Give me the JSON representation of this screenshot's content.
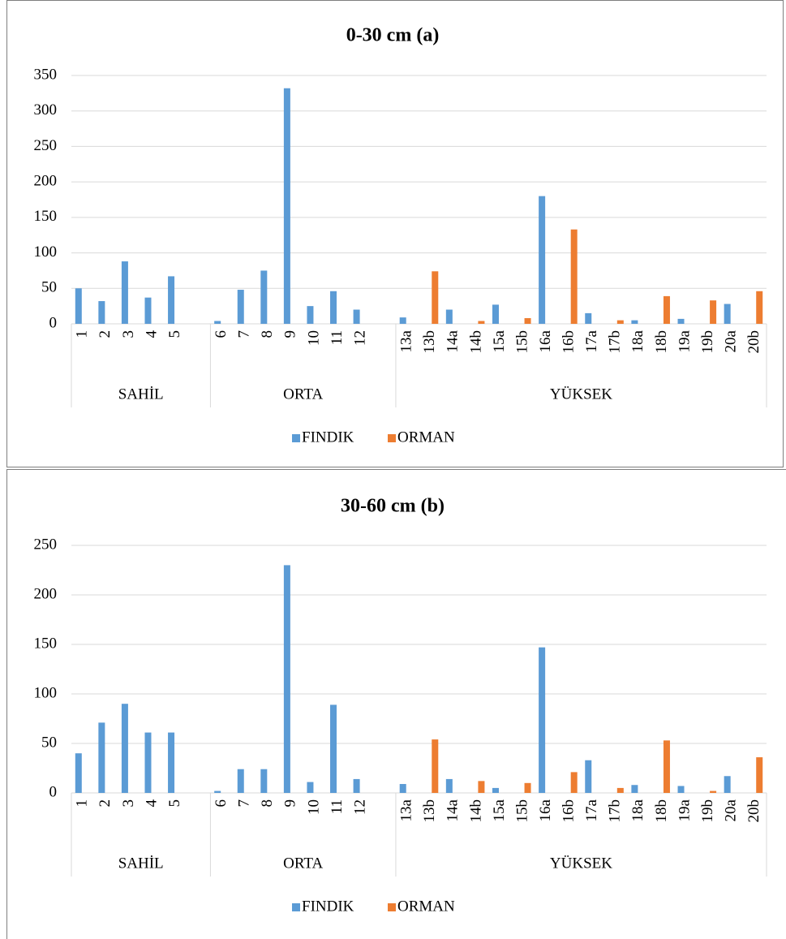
{
  "chart_data": [
    {
      "type": "bar",
      "title": "0-30 cm  (a)",
      "groups": [
        {
          "name": "SAHİL",
          "categories": [
            "1",
            "2",
            "3",
            "4",
            "5",
            null
          ]
        },
        {
          "name": "ORTA",
          "categories": [
            "6",
            "7",
            "8",
            "9",
            "10",
            "11",
            "12",
            null
          ]
        },
        {
          "name": "YÜKSEK",
          "categories": [
            "13a",
            "13b",
            "14a",
            "14b",
            "15a",
            "15b",
            "16a",
            "16b",
            "17a",
            "17b",
            "18a",
            "18b",
            "19a",
            "19b",
            "20a",
            "20b"
          ]
        }
      ],
      "series": [
        {
          "name": "FINDIK",
          "color": "#5b9bd5",
          "values": [
            50,
            32,
            88,
            37,
            67,
            null,
            4,
            48,
            75,
            332,
            25,
            46,
            20,
            null,
            9,
            null,
            20,
            null,
            27,
            null,
            180,
            null,
            15,
            null,
            5,
            null,
            7,
            null,
            28,
            null
          ]
        },
        {
          "name": "ORMAN",
          "color": "#ed7d31",
          "values": [
            null,
            null,
            null,
            null,
            null,
            null,
            null,
            null,
            null,
            null,
            null,
            null,
            null,
            null,
            null,
            74,
            null,
            4,
            null,
            8,
            null,
            133,
            null,
            5,
            null,
            39,
            null,
            33,
            null,
            46
          ]
        }
      ],
      "ylim": [
        0,
        350
      ],
      "yticks": [
        0,
        50,
        100,
        150,
        200,
        250,
        300,
        350
      ],
      "grid": true,
      "legend": "bottom"
    },
    {
      "type": "bar",
      "title": "30-60 cm  (b)",
      "groups": [
        {
          "name": "SAHİL",
          "categories": [
            "1",
            "2",
            "3",
            "4",
            "5",
            null
          ]
        },
        {
          "name": "ORTA",
          "categories": [
            "6",
            "7",
            "8",
            "9",
            "10",
            "11",
            "12",
            null
          ]
        },
        {
          "name": "YÜKSEK",
          "categories": [
            "13a",
            "13b",
            "14a",
            "14b",
            "15a",
            "15b",
            "16a",
            "16b",
            "17a",
            "17b",
            "18a",
            "18b",
            "19a",
            "19b",
            "20a",
            "20b"
          ]
        }
      ],
      "series": [
        {
          "name": "FINDIK",
          "color": "#5b9bd5",
          "values": [
            40,
            71,
            90,
            61,
            61,
            null,
            2,
            24,
            24,
            230,
            11,
            89,
            14,
            null,
            9,
            null,
            14,
            null,
            5,
            null,
            147,
            null,
            33,
            null,
            8,
            null,
            7,
            null,
            17,
            null
          ]
        },
        {
          "name": "ORMAN",
          "color": "#ed7d31",
          "values": [
            null,
            null,
            null,
            null,
            null,
            null,
            null,
            null,
            null,
            null,
            null,
            null,
            null,
            null,
            null,
            54,
            null,
            12,
            null,
            10,
            null,
            21,
            null,
            5,
            null,
            53,
            null,
            2,
            null,
            36
          ]
        }
      ],
      "ylim": [
        0,
        250
      ],
      "yticks": [
        0,
        50,
        100,
        150,
        200,
        250
      ],
      "grid": true,
      "legend": "bottom"
    }
  ]
}
